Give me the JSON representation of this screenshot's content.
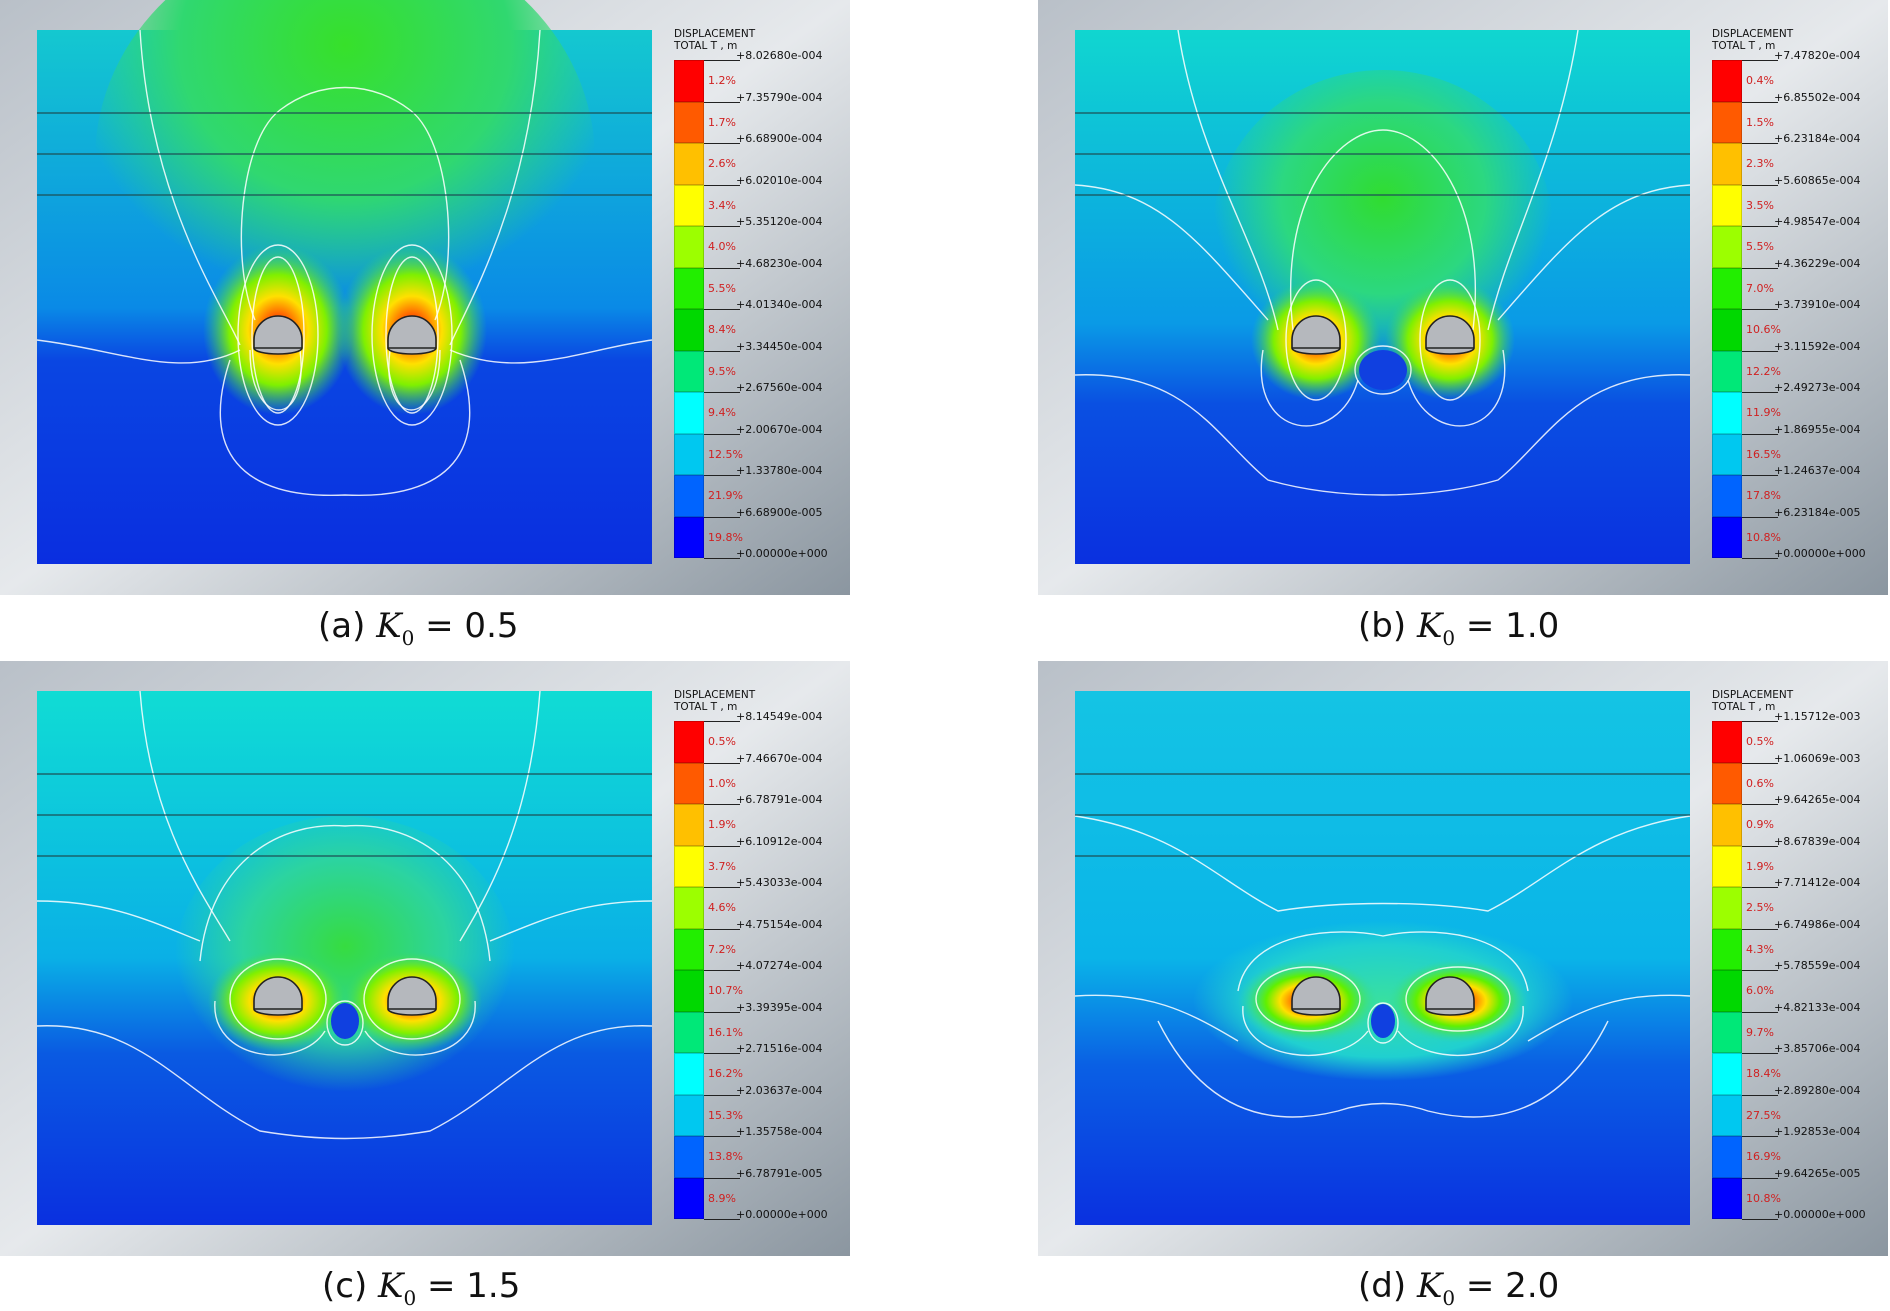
{
  "panels": [
    {
      "id": "a",
      "legend_title": "DISPLACEMENT",
      "legend_subtitle": "TOTAL T , m",
      "values": [
        "+8.02680e-004",
        "+7.35790e-004",
        "+6.68900e-004",
        "+6.02010e-004",
        "+5.35120e-004",
        "+4.68230e-004",
        "+4.01340e-004",
        "+3.34450e-004",
        "+2.67560e-004",
        "+2.00670e-004",
        "+1.33780e-004",
        "+6.68900e-005",
        "+0.00000e+000"
      ],
      "percents": [
        "1.2%",
        "1.7%",
        "2.6%",
        "3.4%",
        "4.0%",
        "5.5%",
        "8.4%",
        "9.5%",
        "9.4%",
        "12.5%",
        "21.9%",
        "19.8%"
      ],
      "caption_prefix": "(a)",
      "caption_k": "K",
      "caption_sub": "0",
      "caption_eq": "= 0.5"
    },
    {
      "id": "b",
      "legend_title": "DISPLACEMENT",
      "legend_subtitle": "TOTAL T , m",
      "values": [
        "+7.47820e-004",
        "+6.85502e-004",
        "+6.23184e-004",
        "+5.60865e-004",
        "+4.98547e-004",
        "+4.36229e-004",
        "+3.73910e-004",
        "+3.11592e-004",
        "+2.49273e-004",
        "+1.86955e-004",
        "+1.24637e-004",
        "+6.23184e-005",
        "+0.00000e+000"
      ],
      "percents": [
        "0.4%",
        "1.5%",
        "2.3%",
        "3.5%",
        "5.5%",
        "7.0%",
        "10.6%",
        "12.2%",
        "11.9%",
        "16.5%",
        "17.8%",
        "10.8%"
      ],
      "caption_prefix": "(b)",
      "caption_k": "K",
      "caption_sub": "0",
      "caption_eq": "= 1.0"
    },
    {
      "id": "c",
      "legend_title": "DISPLACEMENT",
      "legend_subtitle": "TOTAL T , m",
      "values": [
        "+8.14549e-004",
        "+7.46670e-004",
        "+6.78791e-004",
        "+6.10912e-004",
        "+5.43033e-004",
        "+4.75154e-004",
        "+4.07274e-004",
        "+3.39395e-004",
        "+2.71516e-004",
        "+2.03637e-004",
        "+1.35758e-004",
        "+6.78791e-005",
        "+0.00000e+000"
      ],
      "percents": [
        "0.5%",
        "1.0%",
        "1.9%",
        "3.7%",
        "4.6%",
        "7.2%",
        "10.7%",
        "16.1%",
        "16.2%",
        "15.3%",
        "13.8%",
        "8.9%"
      ],
      "caption_prefix": "(c)",
      "caption_k": "K",
      "caption_sub": "0",
      "caption_eq": "= 1.5"
    },
    {
      "id": "d",
      "legend_title": "DISPLACEMENT",
      "legend_subtitle": "TOTAL T , m",
      "values": [
        "+1.15712e-003",
        "+1.06069e-003",
        "+9.64265e-004",
        "+8.67839e-004",
        "+7.71412e-004",
        "+6.74986e-004",
        "+5.78559e-004",
        "+4.82133e-004",
        "+3.85706e-004",
        "+2.89280e-004",
        "+1.92853e-004",
        "+9.64265e-005",
        "+0.00000e+000"
      ],
      "percents": [
        "0.5%",
        "0.6%",
        "0.9%",
        "1.9%",
        "2.5%",
        "4.3%",
        "6.0%",
        "9.7%",
        "18.4%",
        "27.5%",
        "16.9%",
        "10.8%"
      ],
      "caption_prefix": "(d)",
      "caption_k": "K",
      "caption_sub": "0",
      "caption_eq": "= 2.0"
    }
  ],
  "scale_colors": [
    "#ff0000",
    "#ff5a00",
    "#ffc000",
    "#ffff00",
    "#9cff00",
    "#22ee00",
    "#00d800",
    "#00e878",
    "#00ffff",
    "#00c8f0",
    "#0064ff",
    "#0000ff"
  ]
}
